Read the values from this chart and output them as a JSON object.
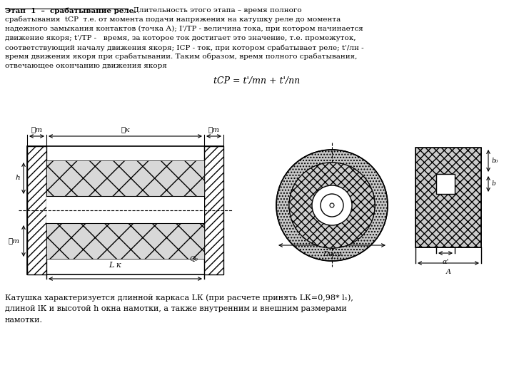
{
  "bg_color": "#ffffff",
  "text_color": "#000000",
  "title_underlined": "Этап  1  –  срабатывание реле.",
  "title_rest": "  Длительность этого этапа – время полного",
  "line2": "срабатывания  tСР  т.е. от момента подачи напряжения на катушку реле до момента",
  "line3": "надежного замыкания контактов (точка А); I'/ТР - величина тока, при котором начинается",
  "line4": "движение якоря; t'/ТР -   время, за которое ток достигает это значение, т.е. промежуток,",
  "line5": "соответствующий началу движения якоря; IСР - ток, при котором срабатывает реле; t'/лн -",
  "line6": "время движения якоря при срабатывании. Таким образом, время полного срабатывания,",
  "line7": "отвечающее окончанию движения якоря",
  "formula": "tСР = t'/тп + t'/пп",
  "bot1": "Катушка характеризуется длинной каркаса LК (при расчете принять LК=0,98* l1),",
  "bot2": "длиной lК и высотой h окна намотки, а также внутренним и внешним размерами",
  "bot3": "намотки."
}
